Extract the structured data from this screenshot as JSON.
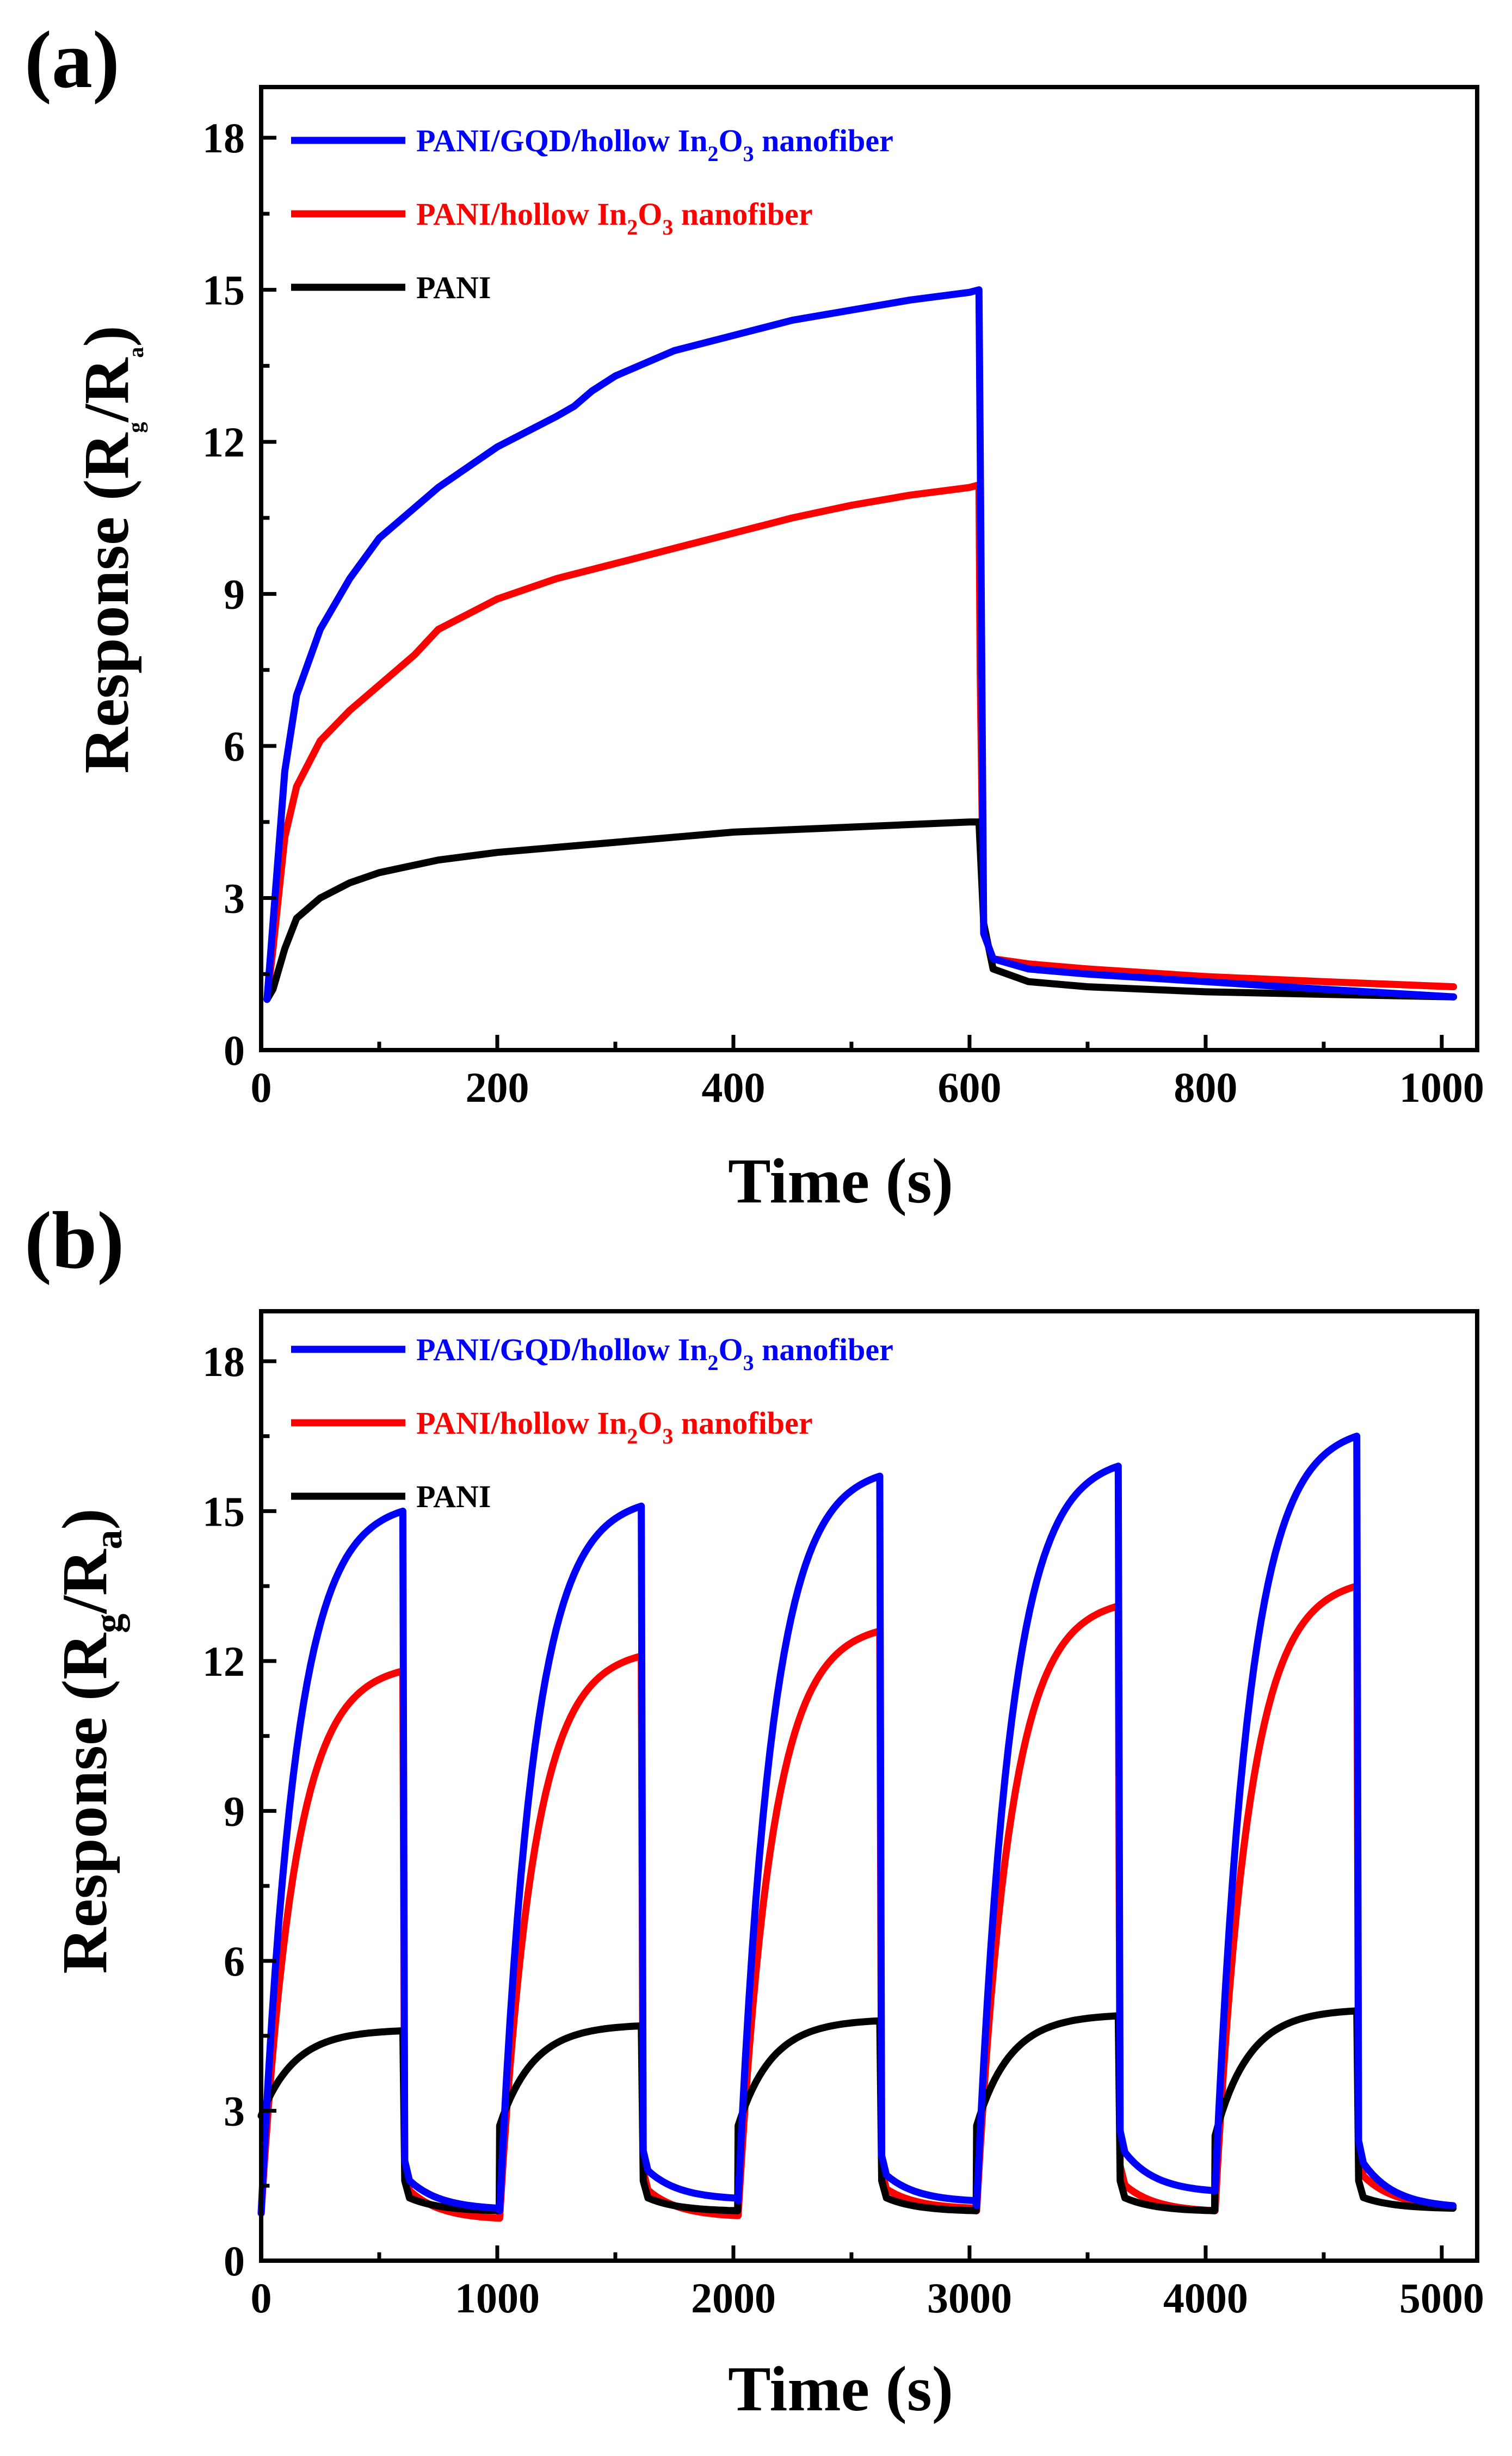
{
  "chart_data": [
    {
      "panel_label": "(a)",
      "type": "line",
      "xlabel": "Time (s)",
      "ylabel": "Response (R",
      "ylabel_sub_g": "g",
      "ylabel_mid": "/R",
      "ylabel_sub_a": "a",
      "ylabel_end": ")",
      "xlim": [
        0,
        1030
      ],
      "ylim": [
        0,
        19
      ],
      "xticks": [
        0,
        200,
        400,
        600,
        800,
        1000
      ],
      "yticks": [
        0,
        3,
        6,
        9,
        12,
        15,
        18
      ],
      "legend_position": "top-left",
      "series": [
        {
          "name": "PANI/GQD/hollow In2O3 nanofiber",
          "legend": {
            "pre": "PANI/GQD/hollow In",
            "s1": "2",
            "mid": "O",
            "s2": "3",
            "post": " nanofiber"
          },
          "color": "#0000ff",
          "x": [
            5,
            10,
            20,
            30,
            50,
            75,
            100,
            150,
            200,
            250,
            265,
            280,
            300,
            350,
            400,
            450,
            500,
            550,
            600,
            608,
            609,
            612,
            620,
            650,
            700,
            800,
            900,
            1010
          ],
          "y": [
            1.0,
            2.5,
            5.5,
            7.0,
            8.3,
            9.3,
            10.1,
            11.1,
            11.9,
            12.5,
            12.7,
            13.0,
            13.3,
            13.8,
            14.1,
            14.4,
            14.6,
            14.8,
            14.95,
            15.0,
            12.0,
            2.3,
            1.8,
            1.6,
            1.5,
            1.35,
            1.2,
            1.05
          ]
        },
        {
          "name": "PANI/hollow In2O3 nanofiber",
          "legend": {
            "pre": "PANI/hollow In",
            "s1": "2",
            "mid": "O",
            "s2": "3",
            "post": " nanofiber"
          },
          "color": "#ff0000",
          "x": [
            5,
            10,
            20,
            30,
            50,
            75,
            100,
            130,
            150,
            200,
            250,
            300,
            350,
            400,
            450,
            500,
            550,
            600,
            608,
            609,
            612,
            620,
            650,
            700,
            800,
            900,
            1010
          ],
          "y": [
            1.0,
            2.0,
            4.2,
            5.2,
            6.1,
            6.7,
            7.2,
            7.8,
            8.3,
            8.9,
            9.3,
            9.6,
            9.9,
            10.2,
            10.5,
            10.75,
            10.95,
            11.1,
            11.15,
            7.5,
            2.3,
            1.8,
            1.7,
            1.6,
            1.45,
            1.35,
            1.25
          ]
        },
        {
          "name": "PANI",
          "legend": {
            "pre": "PANI",
            "s1": "",
            "mid": "",
            "s2": "",
            "post": ""
          },
          "color": "#000000",
          "x": [
            5,
            10,
            20,
            30,
            50,
            75,
            100,
            150,
            200,
            250,
            300,
            350,
            400,
            450,
            500,
            550,
            600,
            608,
            612,
            620,
            650,
            700,
            800,
            900,
            1010
          ],
          "y": [
            1.0,
            1.2,
            2.0,
            2.6,
            3.0,
            3.3,
            3.5,
            3.75,
            3.9,
            4.0,
            4.1,
            4.2,
            4.3,
            4.35,
            4.4,
            4.45,
            4.5,
            4.5,
            2.5,
            1.6,
            1.35,
            1.25,
            1.15,
            1.1,
            1.05
          ]
        }
      ]
    },
    {
      "panel_label": "(b)",
      "type": "line",
      "xlabel": "Time (s)",
      "ylabel": "Response (R",
      "ylabel_sub_g": "g",
      "ylabel_mid": "/R",
      "ylabel_sub_a": "a",
      "ylabel_end": ")",
      "xlim": [
        0,
        5150
      ],
      "ylim": [
        0,
        19
      ],
      "xticks": [
        0,
        1000,
        2000,
        3000,
        4000,
        5000
      ],
      "yticks": [
        0,
        3,
        6,
        9,
        12,
        15,
        18
      ],
      "legend_position": "top-left",
      "cycles": {
        "starts": [
          0,
          1010,
          2020,
          3030,
          4040
        ],
        "exposure_s": 600,
        "recovery_s": 410
      },
      "series": [
        {
          "name": "PANI/GQD/hollow In2O3 nanofiber",
          "legend": {
            "pre": "PANI/GQD/hollow In",
            "s1": "2",
            "mid": "O",
            "s2": "3",
            "post": " nanofiber"
          },
          "color": "#0000ff",
          "peaks": [
            15.0,
            15.1,
            15.7,
            15.9,
            16.5
          ],
          "bases": [
            0.95,
            1.0,
            1.2,
            1.1,
            1.4
          ],
          "recovery_start": [
            1.7,
            1.9,
            1.8,
            2.3,
            2.1
          ],
          "recovery_end": [
            1.05,
            1.25,
            1.2,
            1.4,
            1.1
          ]
        },
        {
          "name": "PANI/hollow In2O3 nanofiber",
          "legend": {
            "pre": "PANI/hollow In",
            "s1": "2",
            "mid": "O",
            "s2": "3",
            "post": " nanofiber"
          },
          "color": "#ff0000",
          "peaks": [
            11.8,
            12.1,
            12.6,
            13.1,
            13.5
          ],
          "bases": [
            0.95,
            0.85,
            0.9,
            1.0,
            1.0
          ],
          "recovery_start": [
            1.5,
            1.5,
            1.5,
            1.6,
            1.8
          ],
          "recovery_end": [
            0.85,
            0.9,
            1.05,
            1.0,
            1.1
          ]
        },
        {
          "name": "PANI",
          "legend": {
            "pre": "PANI",
            "s1": "",
            "mid": "",
            "s2": "",
            "post": ""
          },
          "color": "#000000",
          "peaks": [
            4.6,
            4.7,
            4.8,
            4.9,
            5.0
          ],
          "bases": [
            2.9,
            2.7,
            2.7,
            2.7,
            2.5
          ],
          "recovery_start": [
            1.3,
            1.3,
            1.3,
            1.3,
            1.3
          ],
          "recovery_end": [
            1.0,
            1.0,
            1.0,
            1.0,
            1.05
          ]
        }
      ]
    }
  ]
}
